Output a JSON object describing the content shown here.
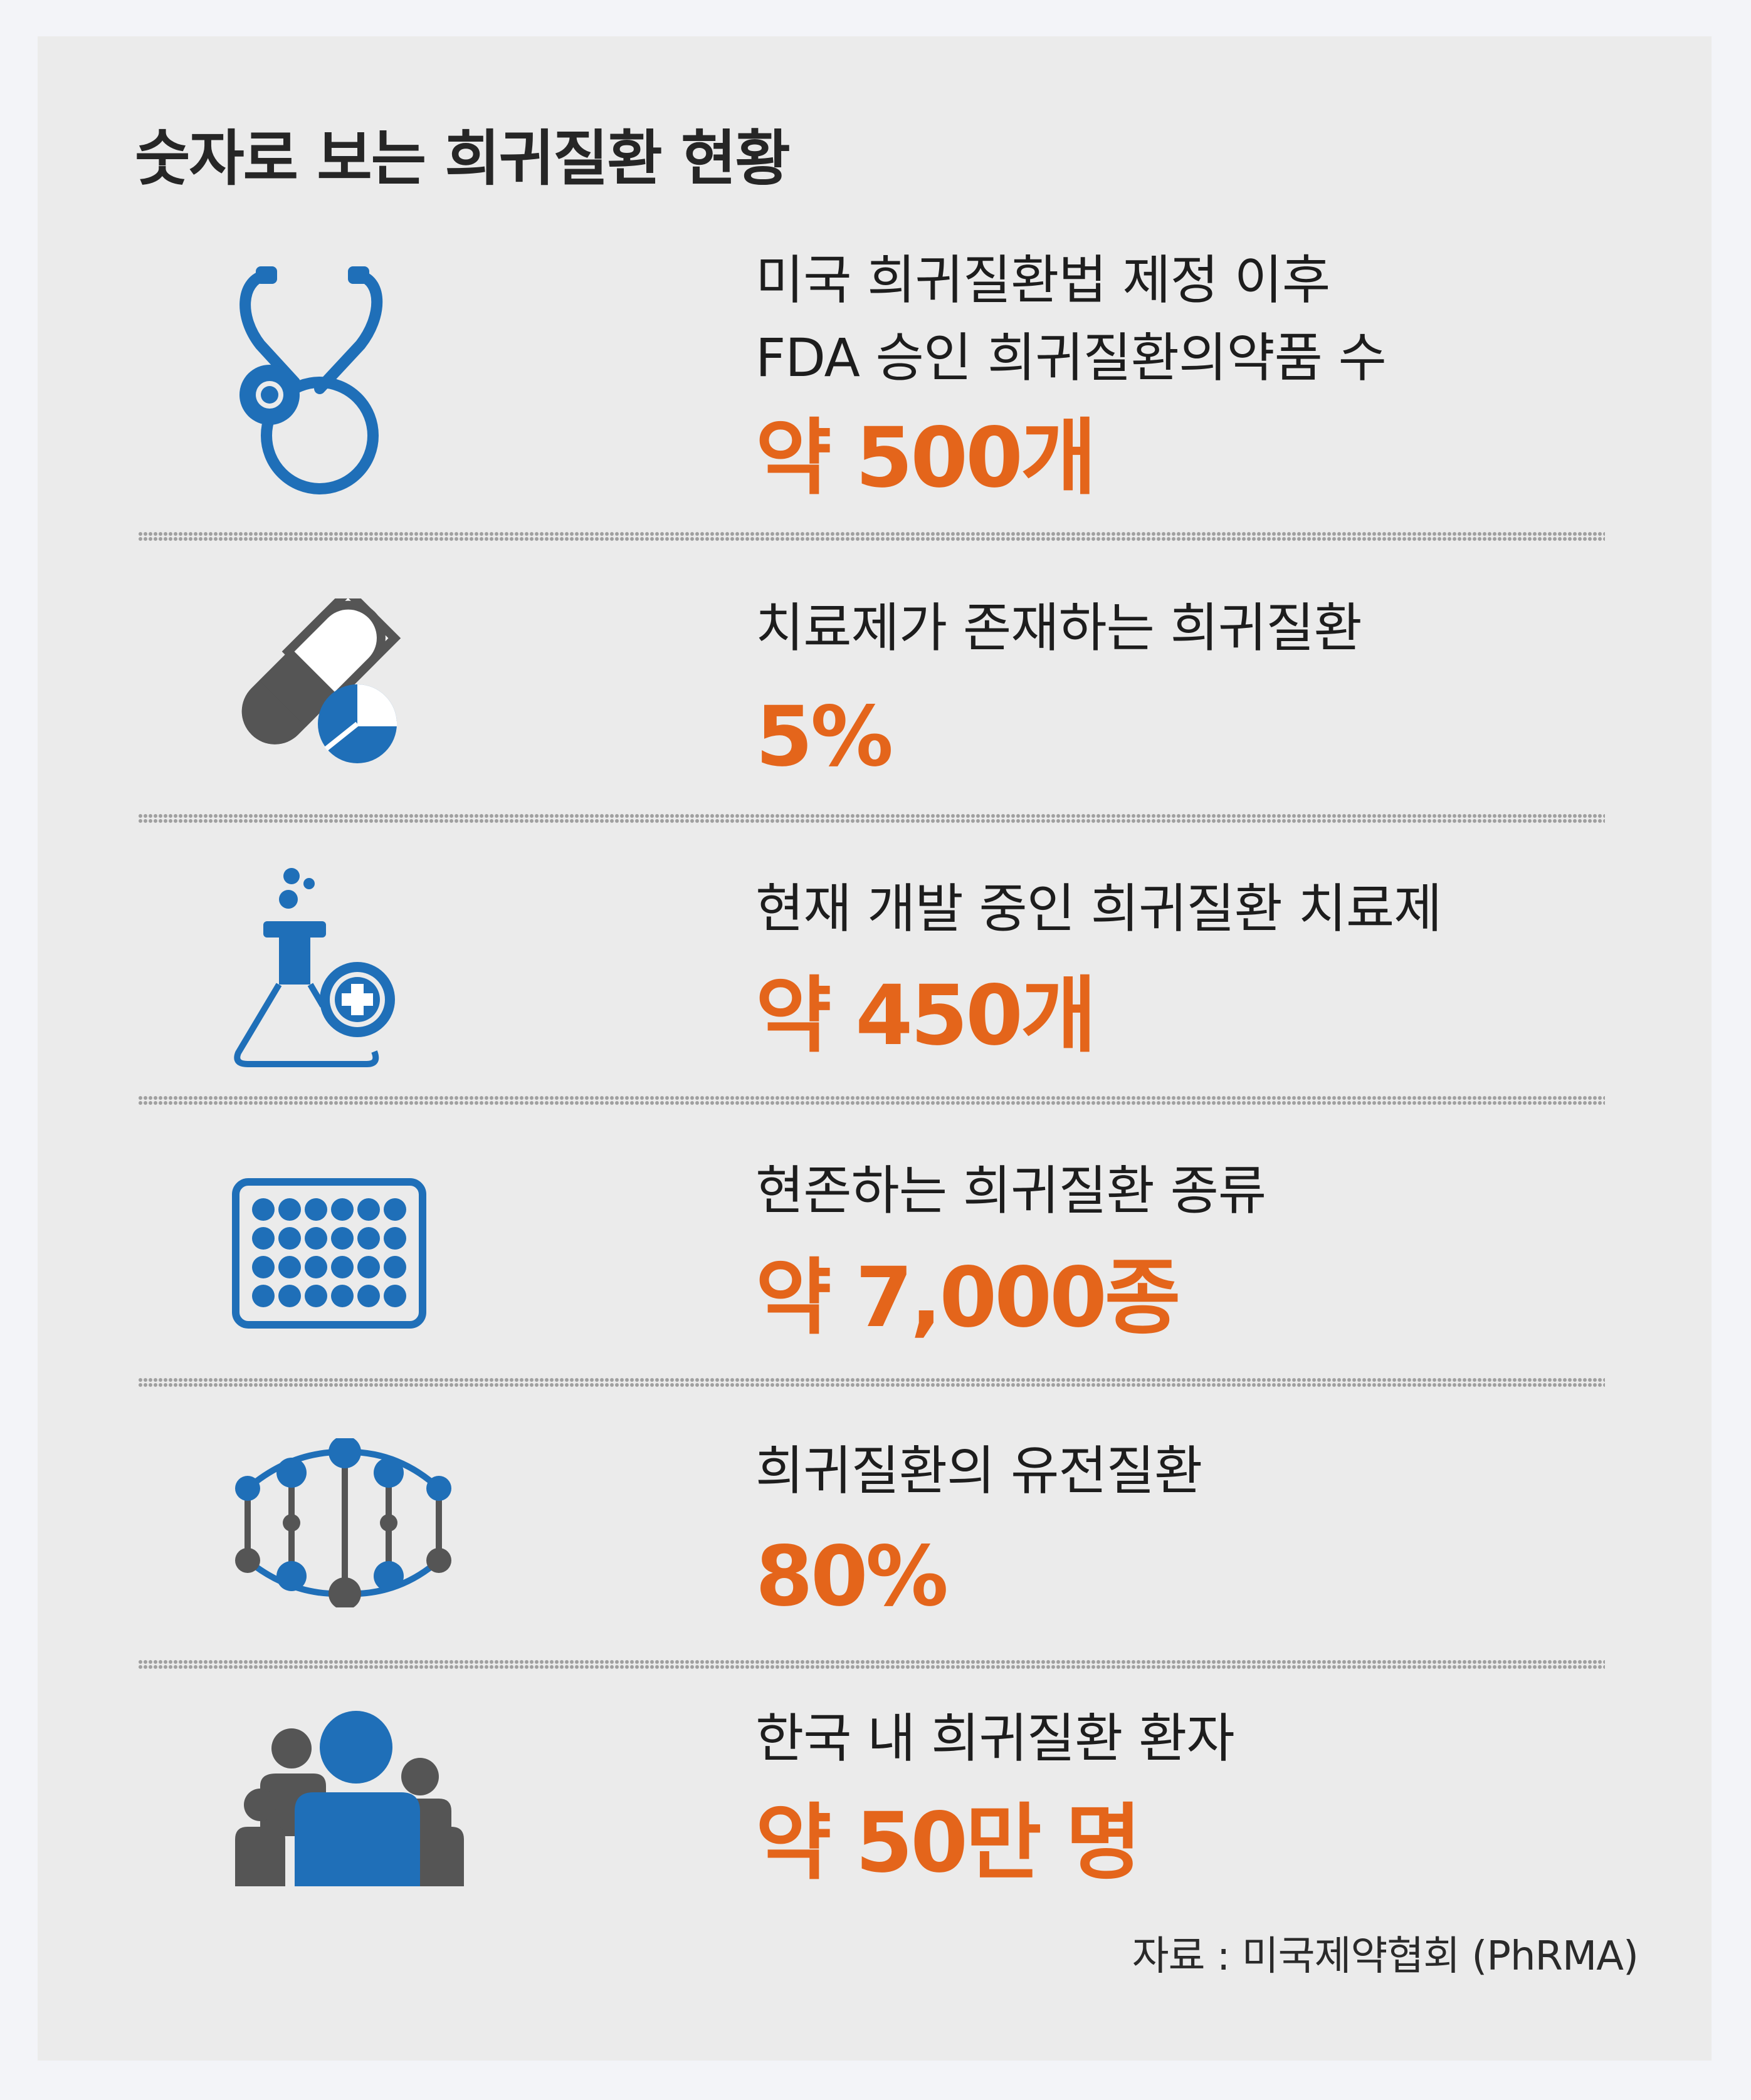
{
  "title": "숫자로 보는 희귀질환 현황",
  "stats": [
    {
      "icon": "stethoscope-icon",
      "label_lines": [
        "미국 희귀질환법 제정 이후",
        "FDA 승인 희귀질환의약품 수"
      ],
      "value": "약 500개"
    },
    {
      "icon": "pill-capsule-icon",
      "label_lines": [
        "치료제가 존재하는 희귀질환"
      ],
      "value": "5%"
    },
    {
      "icon": "flask-icon",
      "label_lines": [
        "현재 개발 중인 희귀질환 치료제"
      ],
      "value": "약 450개"
    },
    {
      "icon": "well-plate-icon",
      "label_lines": [
        "현존하는 희귀질환 종류"
      ],
      "value": "약 7,000종"
    },
    {
      "icon": "dna-icon",
      "label_lines": [
        "희귀질환의 유전질환"
      ],
      "value": "80%"
    },
    {
      "icon": "people-group-icon",
      "label_lines": [
        "한국 내 희귀질환 환자"
      ],
      "value": "약 50만 명"
    }
  ],
  "source": "자료 : 미국제약협회 (PhRMA)",
  "colors": {
    "accent": "#e4651b",
    "icon_blue": "#1f6fb8",
    "icon_gray": "#555555",
    "background": "#ebebeb"
  }
}
